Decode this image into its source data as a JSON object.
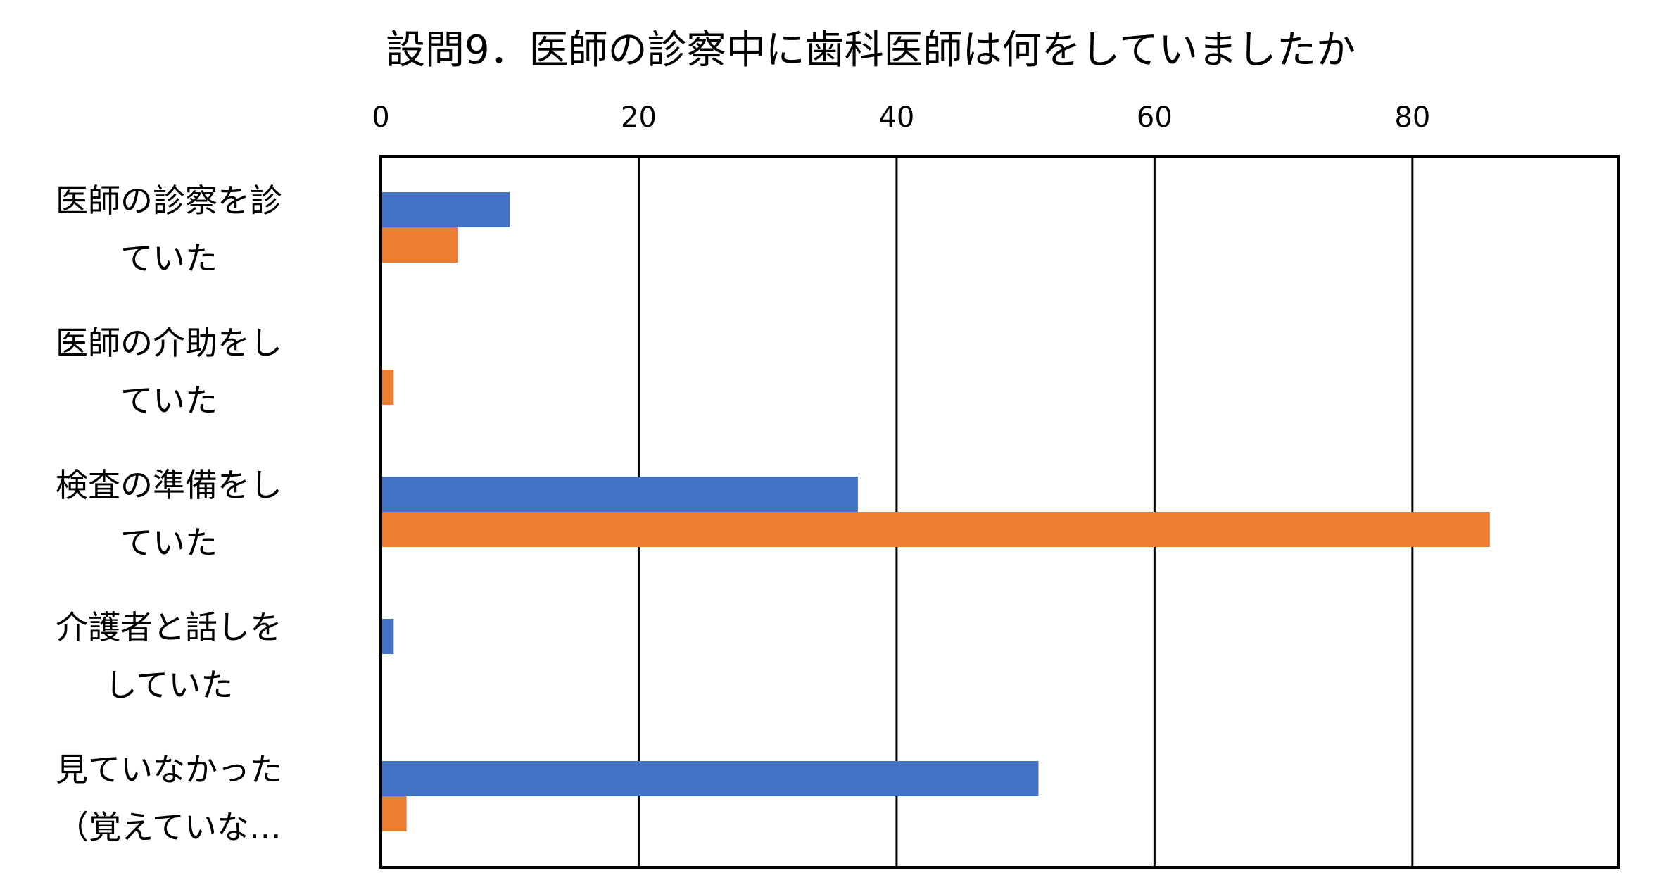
{
  "chart_data": {
    "type": "bar",
    "orientation": "horizontal",
    "title": "設問9．医師の診察中に歯科医師は何をしていましたか",
    "categories": [
      [
        "医師の診察を診",
        "ていた"
      ],
      [
        "医師の介助をし",
        "ていた"
      ],
      [
        "検査の準備をし",
        "ていた"
      ],
      [
        "介護者と話しを",
        "していた"
      ],
      [
        "見ていなかった",
        "（覚えていな…"
      ]
    ],
    "series": [
      {
        "color": "#4472C4",
        "values": [
          10,
          0,
          37,
          1,
          51
        ]
      },
      {
        "color": "#ED7D31",
        "values": [
          6,
          1,
          86,
          0,
          2
        ]
      }
    ],
    "xlim": [
      0,
      96
    ],
    "xticks": [
      0,
      20,
      40,
      60,
      80
    ],
    "xtick_labels": [
      "0",
      "20",
      "40",
      "60",
      "80"
    ],
    "axis_position": "top",
    "grid": true,
    "legend": false
  }
}
